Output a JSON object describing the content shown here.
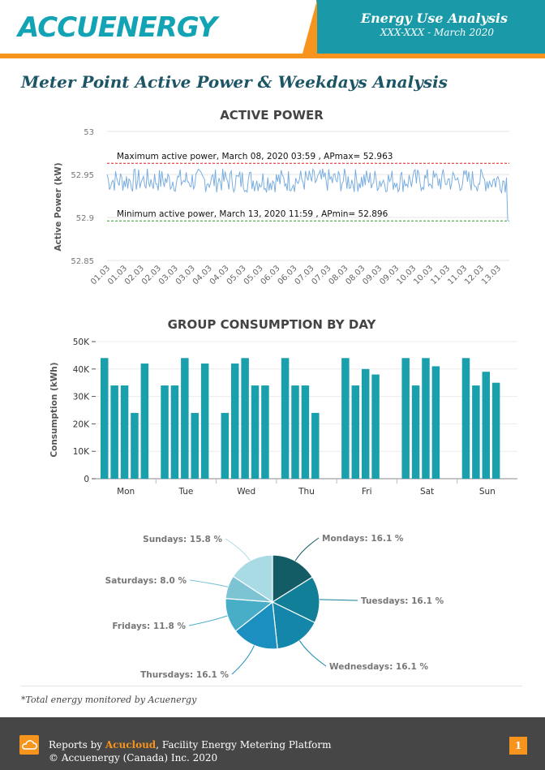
{
  "header": {
    "logo_text": "ACCUENERGY",
    "title": "Energy Use Analysis",
    "subtitle": "XXX-XXX - March 2020"
  },
  "page_title": "Meter Point Active Power & Weekdays Analysis",
  "colors": {
    "teal": "#1aa0ad",
    "orange": "#f7941d",
    "line_blue": "#7aaee0",
    "max_red": "#e0201e",
    "min_green": "#2e9a2e"
  },
  "chart_data": [
    {
      "type": "line",
      "title": "ACTIVE POWER",
      "ylabel": "Active Power (kW)",
      "ylim": [
        52.85,
        53
      ],
      "yticks": [
        "52.85",
        "52.9",
        "52.95",
        "53"
      ],
      "xticks": [
        "01.03",
        "01.03",
        "02.03",
        "02.03",
        "03.03",
        "03.03",
        "04.03",
        "04.03",
        "05.03",
        "05.03",
        "06.03",
        "06.03",
        "07.03",
        "07.03",
        "08.03",
        "08.03",
        "09.03",
        "09.03",
        "10.03",
        "10.03",
        "11.03",
        "11.03",
        "12.03",
        "13.03"
      ],
      "series_summary": "noisy series fluctuating between about 52.93 and 52.96 kW",
      "max_line": {
        "value": 52.963,
        "label": "Maximum active power, March 08, 2020 03:59 , APmax= 52.963"
      },
      "min_line": {
        "value": 52.896,
        "label": "Minimum active power, March 13, 2020 11:59 , APmin= 52.896"
      }
    },
    {
      "type": "bar",
      "title": "GROUP CONSUMPTION BY DAY",
      "ylabel": "Consumption (kWh)",
      "ylim": [
        0,
        50000
      ],
      "yticks": [
        "0",
        "10K",
        "20K",
        "30K",
        "40K",
        "50K"
      ],
      "categories": [
        "Mon",
        "Tue",
        "Wed",
        "Thu",
        "Fri",
        "Sat",
        "Sun"
      ],
      "groups": [
        [
          44000,
          34000,
          34000,
          24000,
          42000
        ],
        [
          34000,
          34000,
          44000,
          24000,
          42000
        ],
        [
          24000,
          42000,
          44000,
          34000,
          34000
        ],
        [
          44000,
          34000,
          34000,
          24000
        ],
        [
          44000,
          34000,
          40000,
          38000
        ],
        [
          44000,
          34000,
          44000,
          41000
        ],
        [
          44000,
          34000,
          39000,
          35000
        ]
      ]
    },
    {
      "type": "pie",
      "slices": [
        {
          "label": "Mondays: 16.1 %",
          "value": 16.1,
          "color": "#135c66"
        },
        {
          "label": "Tuesdays: 16.1 %",
          "value": 16.1,
          "color": "#107f97"
        },
        {
          "label": "Wednesdays: 16.1 %",
          "value": 16.1,
          "color": "#1386aa"
        },
        {
          "label": "Thursdays: 16.1 %",
          "value": 16.1,
          "color": "#1a8fc0"
        },
        {
          "label": "Fridays: 11.8 %",
          "value": 11.8,
          "color": "#48aec8"
        },
        {
          "label": "Saturdays: 8.0 %",
          "value": 8.0,
          "color": "#7cc3d4"
        },
        {
          "label": "Sundays: 15.8 %",
          "value": 15.8,
          "color": "#a9dbe5"
        }
      ]
    }
  ],
  "footnote": "*Total energy monitored by Acuenergy",
  "footer": {
    "reports_by": "Reports by ",
    "brand": "Acucloud",
    "platform": ", Facility Energy Metering Platform",
    "copyright": "© Accuenergy (Canada) Inc. 2020",
    "page_number": "1"
  }
}
